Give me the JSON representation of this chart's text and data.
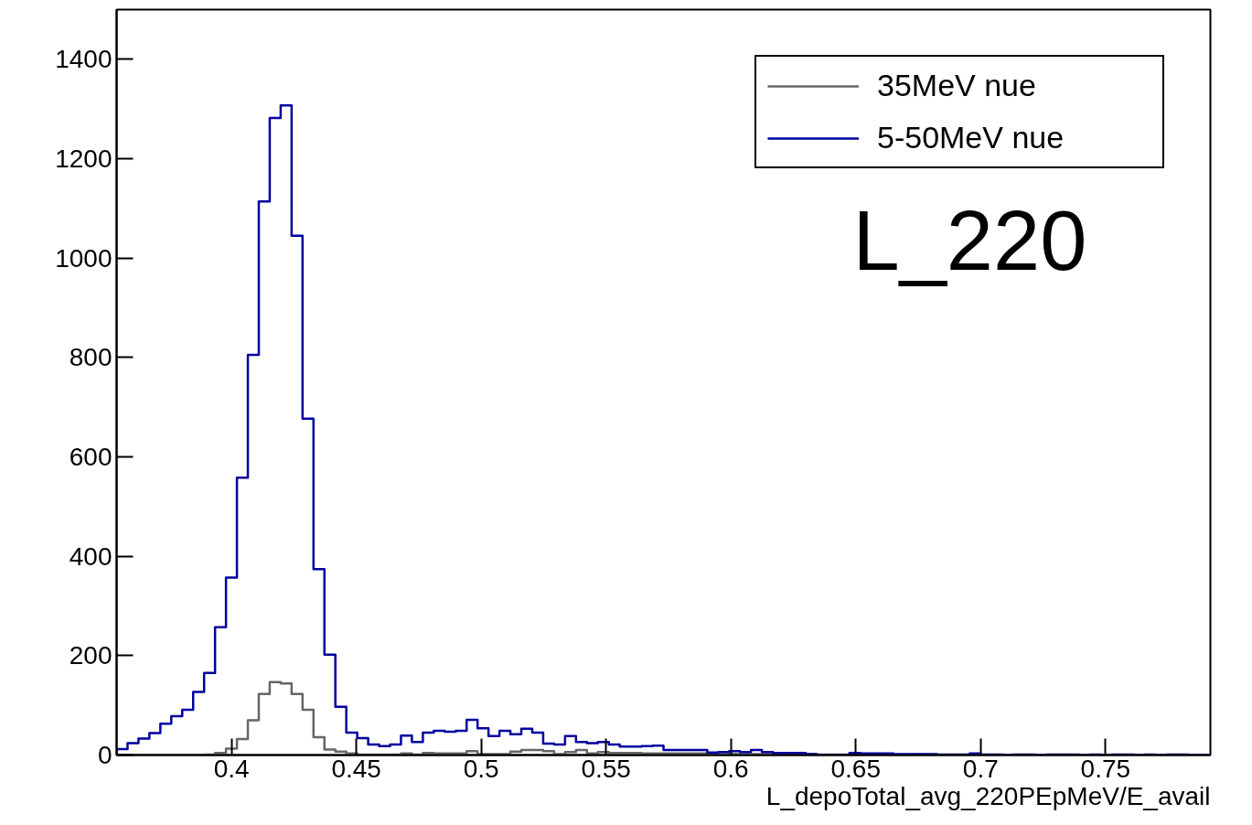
{
  "chart_data": {
    "type": "histogram",
    "xlabel": "L_depoTotal_avg_220PEpMeV/E_avail",
    "annotations": [
      "L_220"
    ],
    "bins": [
      0.354,
      0.35838,
      0.36276,
      0.36714,
      0.37152,
      0.3759,
      0.38028,
      0.38466,
      0.38904,
      0.39342,
      0.3978,
      0.40218,
      0.40656,
      0.41094,
      0.41532,
      0.4197,
      0.42408,
      0.42846,
      0.43284,
      0.43722,
      0.4416,
      0.44598,
      0.45036,
      0.45474,
      0.45912,
      0.4635,
      0.46788,
      0.47226,
      0.47664,
      0.48102,
      0.4854,
      0.48978,
      0.49416,
      0.49854,
      0.50292,
      0.5073,
      0.51168,
      0.51606,
      0.52044,
      0.52482,
      0.5292,
      0.53358,
      0.53796,
      0.54234,
      0.54672,
      0.5511,
      0.55548,
      0.55986,
      0.56424,
      0.56862,
      0.573,
      0.57738,
      0.58176,
      0.58614,
      0.59052,
      0.5949,
      0.59928,
      0.60366,
      0.60804,
      0.61242,
      0.6168,
      0.62118,
      0.62556,
      0.62994,
      0.63432,
      0.6387,
      0.64308,
      0.64746,
      0.65184,
      0.65622,
      0.6606,
      0.66498,
      0.66936,
      0.67374,
      0.67812,
      0.6825,
      0.68688,
      0.69126,
      0.69564,
      0.70002,
      0.7044,
      0.70878,
      0.71316,
      0.71754,
      0.72192,
      0.7263,
      0.73068,
      0.73506,
      0.73944,
      0.74382,
      0.7482,
      0.75258,
      0.75696,
      0.76134,
      0.76572,
      0.7701,
      0.77448,
      0.77886,
      0.78324,
      0.78762,
      0.792
    ],
    "series": [
      {
        "name": "35MeV nue",
        "color": "#666666",
        "values": [
          0,
          0,
          0,
          0,
          0,
          0,
          0,
          0,
          1,
          4,
          13,
          32,
          70,
          123,
          147,
          144,
          123,
          91,
          36,
          11,
          7,
          3,
          1,
          1,
          1,
          1,
          3,
          1,
          4,
          3,
          3,
          3,
          8,
          2,
          2,
          2,
          7,
          10,
          10,
          8,
          2,
          6,
          10,
          3,
          6,
          4,
          4,
          4,
          3,
          3,
          3,
          3,
          3,
          3,
          2,
          2,
          2,
          2,
          2,
          2,
          2,
          2,
          2,
          2,
          1,
          1,
          1,
          1,
          0,
          0,
          1,
          0,
          0,
          1,
          0,
          0,
          0,
          0,
          0,
          0,
          0,
          0,
          0,
          0,
          0,
          0,
          0,
          0,
          0,
          0,
          0,
          0,
          0,
          0,
          0,
          0,
          0,
          0,
          0,
          0
        ]
      },
      {
        "name": "5-50MeV nue",
        "color": "#0000a0",
        "values": [
          12,
          24,
          33,
          44,
          63,
          78,
          91,
          127,
          165,
          257,
          357,
          558,
          805,
          1114,
          1282,
          1307,
          1045,
          677,
          374,
          202,
          97,
          45,
          34,
          21,
          18,
          21,
          39,
          26,
          45,
          49,
          47,
          49,
          71,
          54,
          38,
          49,
          42,
          53,
          45,
          23,
          21,
          38,
          26,
          24,
          26,
          21,
          17,
          17,
          18,
          19,
          10,
          10,
          10,
          10,
          5,
          6,
          8,
          6,
          10,
          6,
          4,
          4,
          4,
          2,
          0,
          0,
          0,
          4,
          3,
          3,
          3,
          2,
          2,
          2,
          2,
          1,
          1,
          1,
          3,
          1,
          1,
          0,
          1,
          1,
          0,
          1,
          1,
          1,
          0,
          1,
          0,
          1,
          1,
          0,
          1,
          0,
          1,
          1,
          0,
          0
        ]
      }
    ],
    "xlim": [
      0.354,
      0.792
    ],
    "ylim": [
      0,
      1500
    ],
    "xticks": [
      0.4,
      0.45,
      0.5,
      0.55,
      0.6,
      0.65,
      0.7,
      0.75
    ],
    "yticks": [
      0,
      200,
      400,
      600,
      800,
      1000,
      1200,
      1400
    ],
    "legend": "top right"
  }
}
